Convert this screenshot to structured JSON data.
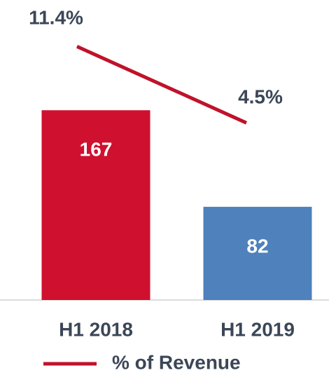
{
  "chart_data": {
    "type": "bar",
    "categories": [
      "H1 2018",
      "H1 2019"
    ],
    "series": [
      {
        "colors": [
          "#d0102f",
          "#4f81bd"
        ],
        "values": [
          167,
          82
        ]
      },
      {
        "name": "% of Revenue",
        "type": "line",
        "axis": "y2",
        "color": "#c0122b",
        "values": [
          11.4,
          4.5
        ],
        "value_labels": [
          "11.4%",
          "4.5%"
        ]
      }
    ],
    "ylim": [
      0,
      264
    ],
    "y2lim": [
      -11.5,
      15.6
    ],
    "legend": "bottom"
  }
}
